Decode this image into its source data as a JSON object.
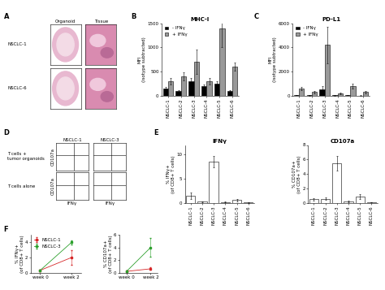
{
  "chart_data": [
    {
      "type": "image_grid",
      "annotation": "A",
      "columns": [
        "Organoid",
        "Tissue"
      ],
      "rows": [
        "NSCLC-1",
        "NSCLC-6"
      ],
      "tick_labels": false
    },
    {
      "type": "bar",
      "annotation": "B",
      "title": "MHC-I",
      "y_label": "MFI\n(isotype subtracted)",
      "categories": [
        "NSCLC-1",
        "NSCLC-2",
        "NSCLC-3",
        "NSCLC-4",
        "NSCLC-5",
        "NSCLC-6"
      ],
      "series": [
        {
          "name": "- IFNγ",
          "color": "#000000",
          "values": [
            150,
            100,
            300,
            200,
            250,
            100
          ],
          "errors": [
            30,
            20,
            60,
            40,
            50,
            20
          ]
        },
        {
          "name": "+ IFNγ",
          "color": "#999999",
          "values": [
            300,
            400,
            700,
            300,
            1400,
            600
          ],
          "errors": [
            60,
            80,
            250,
            60,
            400,
            80
          ]
        }
      ],
      "ylim": [
        0,
        1500
      ],
      "yticks": [
        0,
        500,
        1000,
        1500
      ],
      "legend": "upper left"
    },
    {
      "type": "bar",
      "annotation": "C",
      "title": "PD-L1",
      "y_label": "MFI\n(isotype subtracted)",
      "categories": [
        "NSCLC-1",
        "NSCLC-2",
        "NSCLC-3",
        "NSCLC-4",
        "NSCLC-5",
        "NSCLC-6"
      ],
      "series": [
        {
          "name": "- IFNγ",
          "color": "#000000",
          "values": [
            50,
            30,
            500,
            30,
            50,
            20
          ],
          "errors": [
            20,
            10,
            300,
            10,
            20,
            10
          ]
        },
        {
          "name": "+ IFNγ",
          "color": "#999999",
          "values": [
            600,
            300,
            4200,
            200,
            800,
            300
          ],
          "errors": [
            150,
            80,
            1500,
            60,
            200,
            80
          ]
        }
      ],
      "ylim": [
        0,
        6000
      ],
      "yticks": [
        0,
        2000,
        4000,
        6000
      ],
      "legend": "upper left"
    },
    {
      "type": "flow",
      "annotation": "D",
      "columns": [
        "NSCLC-1",
        "NSCLC-3"
      ],
      "rows": [
        "T cells +\ntumor organoids",
        "T cells alone"
      ],
      "x_label": "IFNγ",
      "y_label": "CD107a",
      "tick_labels": false
    },
    {
      "type": "bar",
      "annotation": "E",
      "title": "IFNγ",
      "y_label": "% IFNγ+\n(of CD8+ T cells)",
      "categories": [
        "NSCLC-1",
        "NSCLC-2",
        "NSCLC-3",
        "NSCLC-4",
        "NSCLC-5",
        "NSCLC-6"
      ],
      "series": [
        {
          "color": "#ffffff",
          "values": [
            1.5,
            0.3,
            8.5,
            0.2,
            0.6,
            0.1
          ],
          "errors": [
            0.6,
            0.1,
            1.2,
            0.1,
            0.3,
            0.05
          ]
        }
      ],
      "ylim": [
        0,
        12
      ],
      "yticks": [
        0,
        5,
        10
      ]
    },
    {
      "type": "bar",
      "title": "CD107a",
      "y_label": "% CD107a+\n(of CD8+ T cells)",
      "categories": [
        "NSCLC-1",
        "NSCLC-2",
        "NSCLC-3",
        "NSCLC-4",
        "NSCLC-5",
        "NSCLC-6"
      ],
      "series": [
        {
          "color": "#ffffff",
          "values": [
            0.5,
            0.6,
            5.5,
            0.2,
            0.9,
            0.1
          ],
          "errors": [
            0.2,
            0.2,
            1.0,
            0.1,
            0.3,
            0.05
          ]
        }
      ],
      "ylim": [
        0,
        8
      ],
      "yticks": [
        0,
        2,
        4,
        6,
        8
      ]
    },
    {
      "type": "line",
      "annotation": "F",
      "y_label": "% IFNγ+\n(of CD8+ T cells)",
      "categories": [
        "week 0",
        "week 2"
      ],
      "series": [
        {
          "name": "NSCLC-1",
          "color": "#d62728",
          "values": [
            0.3,
            2.0
          ],
          "errors": [
            0.1,
            1.0
          ]
        },
        {
          "name": "NSCLC-3",
          "color": "#2ca02c",
          "values": [
            0.3,
            4.0
          ],
          "errors": [
            0.1,
            0.3
          ]
        }
      ],
      "ylim": [
        0,
        5
      ],
      "yticks": [
        0,
        2,
        4
      ],
      "legend": "upper left",
      "marker": "s"
    },
    {
      "type": "line",
      "y_label": "% CD107a+\n(of CD8+ T cells)",
      "categories": [
        "week 0",
        "week 2"
      ],
      "series": [
        {
          "color": "#d62728",
          "values": [
            0.2,
            0.6
          ],
          "errors": [
            0.1,
            0.2
          ]
        },
        {
          "color": "#2ca02c",
          "values": [
            0.2,
            4.0
          ],
          "errors": [
            0.1,
            1.5
          ]
        }
      ],
      "ylim": [
        0,
        6
      ],
      "yticks": [
        0,
        2,
        4,
        6
      ],
      "marker": "s"
    }
  ]
}
